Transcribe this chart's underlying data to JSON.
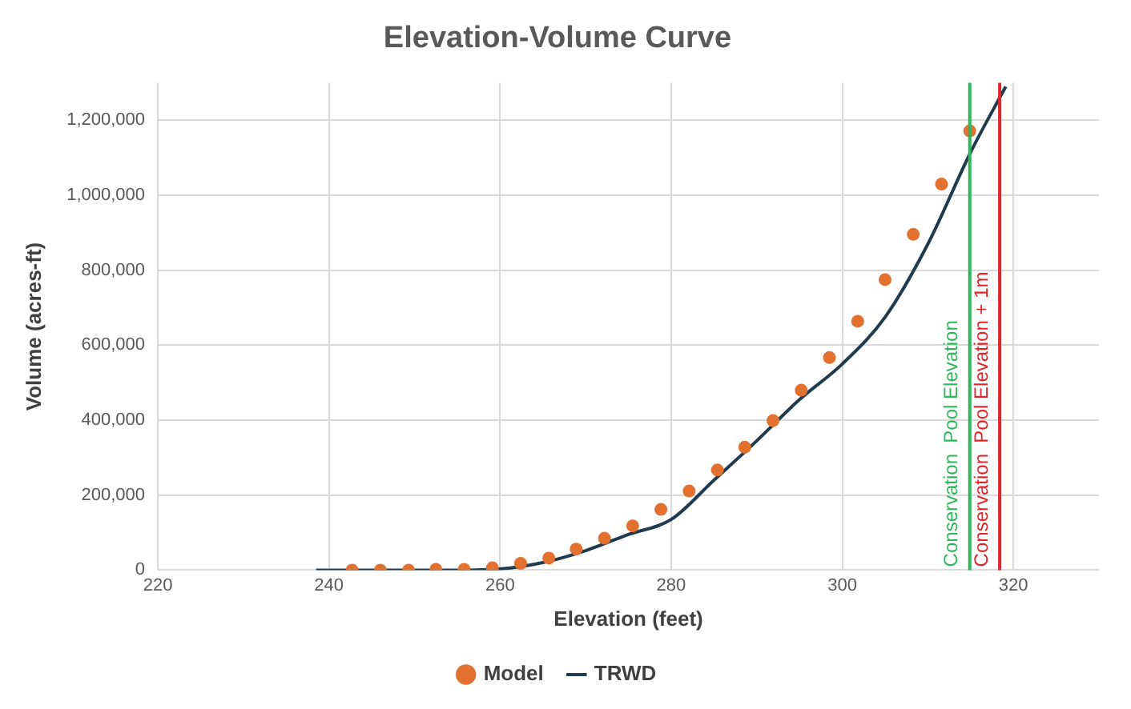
{
  "chart_data": {
    "type": "scatter",
    "title": "Elevation-Volume Curve",
    "xlabel": "Elevation (feet)",
    "ylabel": "Volume (acres-ft)",
    "xlim": [
      220,
      330
    ],
    "xticks": [
      220,
      240,
      260,
      280,
      300,
      320
    ],
    "ylim": [
      0,
      1300000
    ],
    "yticks": [
      0,
      {
        "value": 200000,
        "label": "200,000"
      },
      {
        "value": 400000,
        "label": "400,000"
      },
      {
        "value": 600000,
        "label": "600,000"
      },
      {
        "value": 800000,
        "label": "800,000"
      },
      {
        "value": 1000000,
        "label": "1,000,000"
      },
      {
        "value": 1200000,
        "label": "1,200,000"
      }
    ],
    "grid": true,
    "legend": "bottom",
    "series": [
      {
        "name": "Model",
        "type": "scatter",
        "marker": "circle",
        "color": "#e2702f",
        "x": [
          242.7,
          246.0,
          249.3,
          252.5,
          255.8,
          259.1,
          262.4,
          265.7,
          268.9,
          272.2,
          275.5,
          278.8,
          282.1,
          285.4,
          288.6,
          291.9,
          295.2,
          298.5,
          301.8,
          305.0,
          308.3,
          311.6,
          314.9
        ],
        "values": [
          0,
          0,
          0,
          2000,
          2000,
          6000,
          18000,
          32000,
          56000,
          85000,
          118000,
          162000,
          211000,
          267000,
          328000,
          399000,
          480000,
          567000,
          664000,
          775000,
          896000,
          1030000,
          1172000
        ]
      },
      {
        "name": "TRWD",
        "type": "line",
        "line_style": "solid",
        "marker": "none",
        "color": "#1f3b4d",
        "x": [
          238.5,
          255,
          260,
          265,
          270,
          275,
          280,
          285,
          290,
          295,
          300,
          305,
          310,
          315,
          319.1
        ],
        "values": [
          0,
          0,
          3000,
          20000,
          52000,
          95000,
          135000,
          240000,
          345000,
          455000,
          550000,
          675000,
          870000,
          1115000,
          1290000
        ]
      }
    ],
    "ref_lines": [
      {
        "axis": "x",
        "value": 314.9,
        "label": "Conservation  Pool Elevation",
        "color": "#2eb85c"
      },
      {
        "axis": "x",
        "value": 318.4,
        "label": "Conservation  Pool Elevation + 1m",
        "color": "#e0252b"
      }
    ]
  }
}
